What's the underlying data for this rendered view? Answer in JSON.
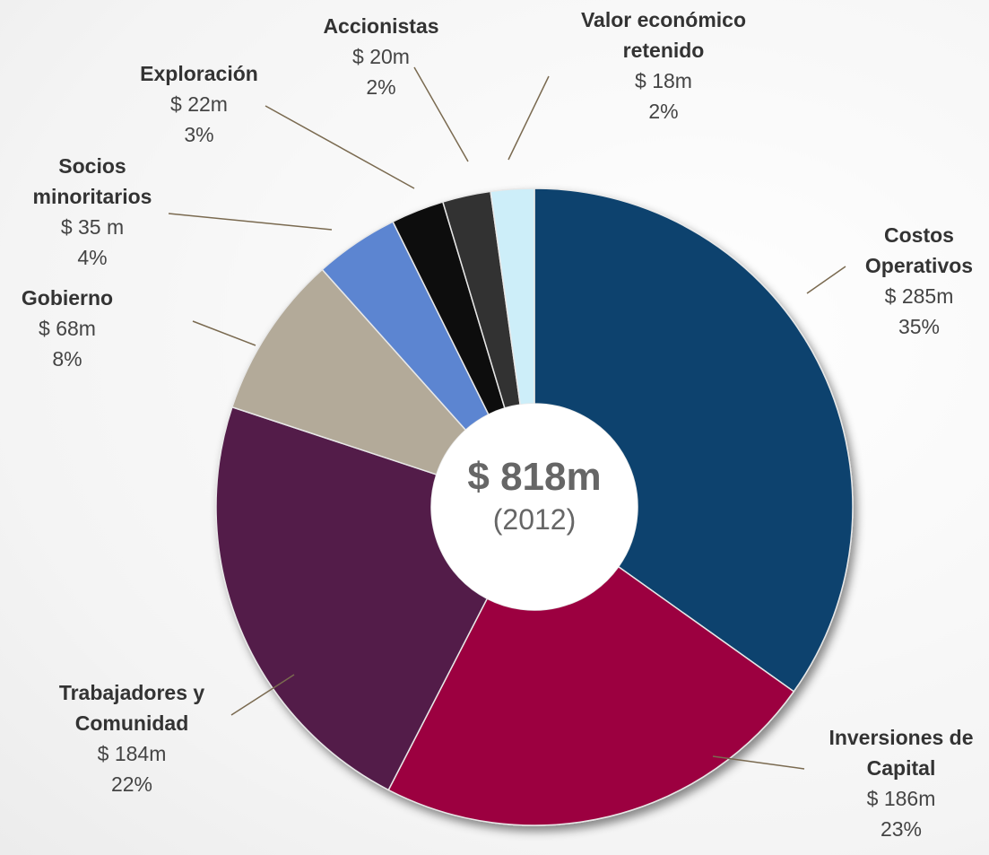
{
  "chart_data": {
    "type": "donut",
    "center_label": "$ 818m",
    "center_sublabel": "(2012)",
    "categories": [
      "Costos Operativos",
      "Inversiones de Capital",
      "Trabajadores y Comunidad",
      "Gobierno",
      "Socios minoritarios",
      "Exploración",
      "Accionistas",
      "Valor económico retenido"
    ],
    "values": [
      285,
      186,
      184,
      68,
      35,
      22,
      20,
      18
    ],
    "value_labels": [
      "$ 285m",
      "$ 186m",
      "$ 184m",
      "$ 68m",
      "$ 35 m",
      "$ 22m",
      "$ 20m",
      "$ 18m"
    ],
    "percents": [
      35,
      23,
      22,
      8,
      4,
      3,
      2,
      2
    ],
    "percent_labels": [
      "35%",
      "23%",
      "22%",
      "8%",
      "4%",
      "3%",
      "2%",
      "2%"
    ],
    "colors": [
      "#08426e",
      "#9c0640",
      "#521c4a",
      "#b3aa99",
      "#5b85d1",
      "#080808",
      "#333333",
      "#cdeef9"
    ]
  }
}
